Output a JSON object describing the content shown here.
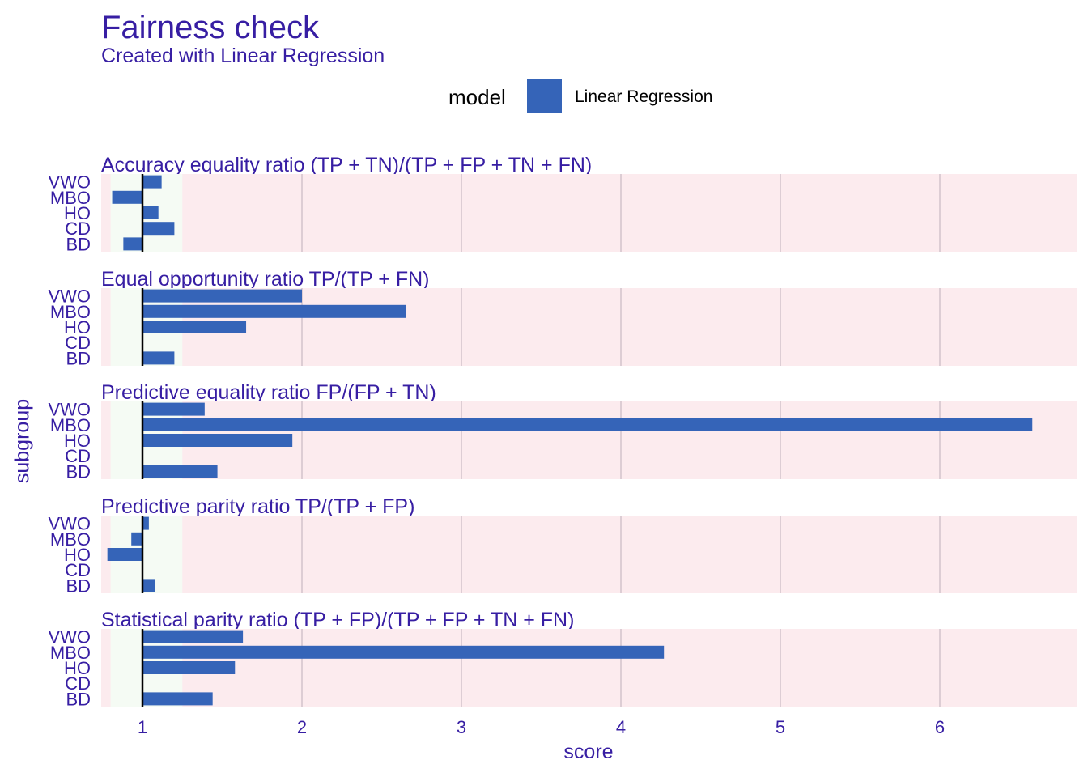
{
  "header": {
    "title": "Fairness check",
    "subtitle": "Created with Linear Regression"
  },
  "legend": {
    "title": "model",
    "label": "Linear Regression",
    "color": "#3564b8"
  },
  "colors": {
    "text": "#371ea3",
    "bar": "#3564b8",
    "fair_zone": "#f5fbf4",
    "unfair_zone": "#fcebee",
    "gridline": "#ddcdd4",
    "reference_line": "#000000"
  },
  "chart_data": {
    "type": "bar",
    "orientation": "horizontal",
    "title": "Fairness check",
    "subtitle": "Created with Linear Regression",
    "xlabel": "score",
    "ylabel": "subgroup",
    "xlim": [
      0.75,
      6.85
    ],
    "xticks": [
      1,
      2,
      3,
      4,
      5,
      6
    ],
    "baseline": 1,
    "fair_range": [
      0.8,
      1.25
    ],
    "legend_position": "top",
    "grid": true,
    "categories": [
      "VWO",
      "MBO",
      "HO",
      "CD",
      "BD"
    ],
    "panels": [
      {
        "title": "Accuracy equality ratio    (TP + TN)/(TP + FP + TN + FN)",
        "series": [
          {
            "name": "Linear Regression",
            "values": [
              1.12,
              0.81,
              1.1,
              1.2,
              0.88
            ]
          }
        ]
      },
      {
        "title": "Equal opportunity ratio     TP/(TP + FN)",
        "series": [
          {
            "name": "Linear Regression",
            "values": [
              2.0,
              2.65,
              1.65,
              null,
              1.2
            ]
          }
        ]
      },
      {
        "title": "Predictive equality ratio   FP/(FP + TN)",
        "series": [
          {
            "name": "Linear Regression",
            "values": [
              1.39,
              6.58,
              1.94,
              null,
              1.47
            ]
          }
        ]
      },
      {
        "title": "Predictive parity ratio     TP/(TP + FP)",
        "series": [
          {
            "name": "Linear Regression",
            "values": [
              1.04,
              0.93,
              0.78,
              null,
              1.08
            ]
          }
        ]
      },
      {
        "title": "Statistical parity ratio   (TP + FP)/(TP + FP + TN + FN)",
        "series": [
          {
            "name": "Linear Regression",
            "values": [
              1.63,
              4.27,
              1.58,
              null,
              1.44
            ]
          }
        ]
      }
    ]
  }
}
